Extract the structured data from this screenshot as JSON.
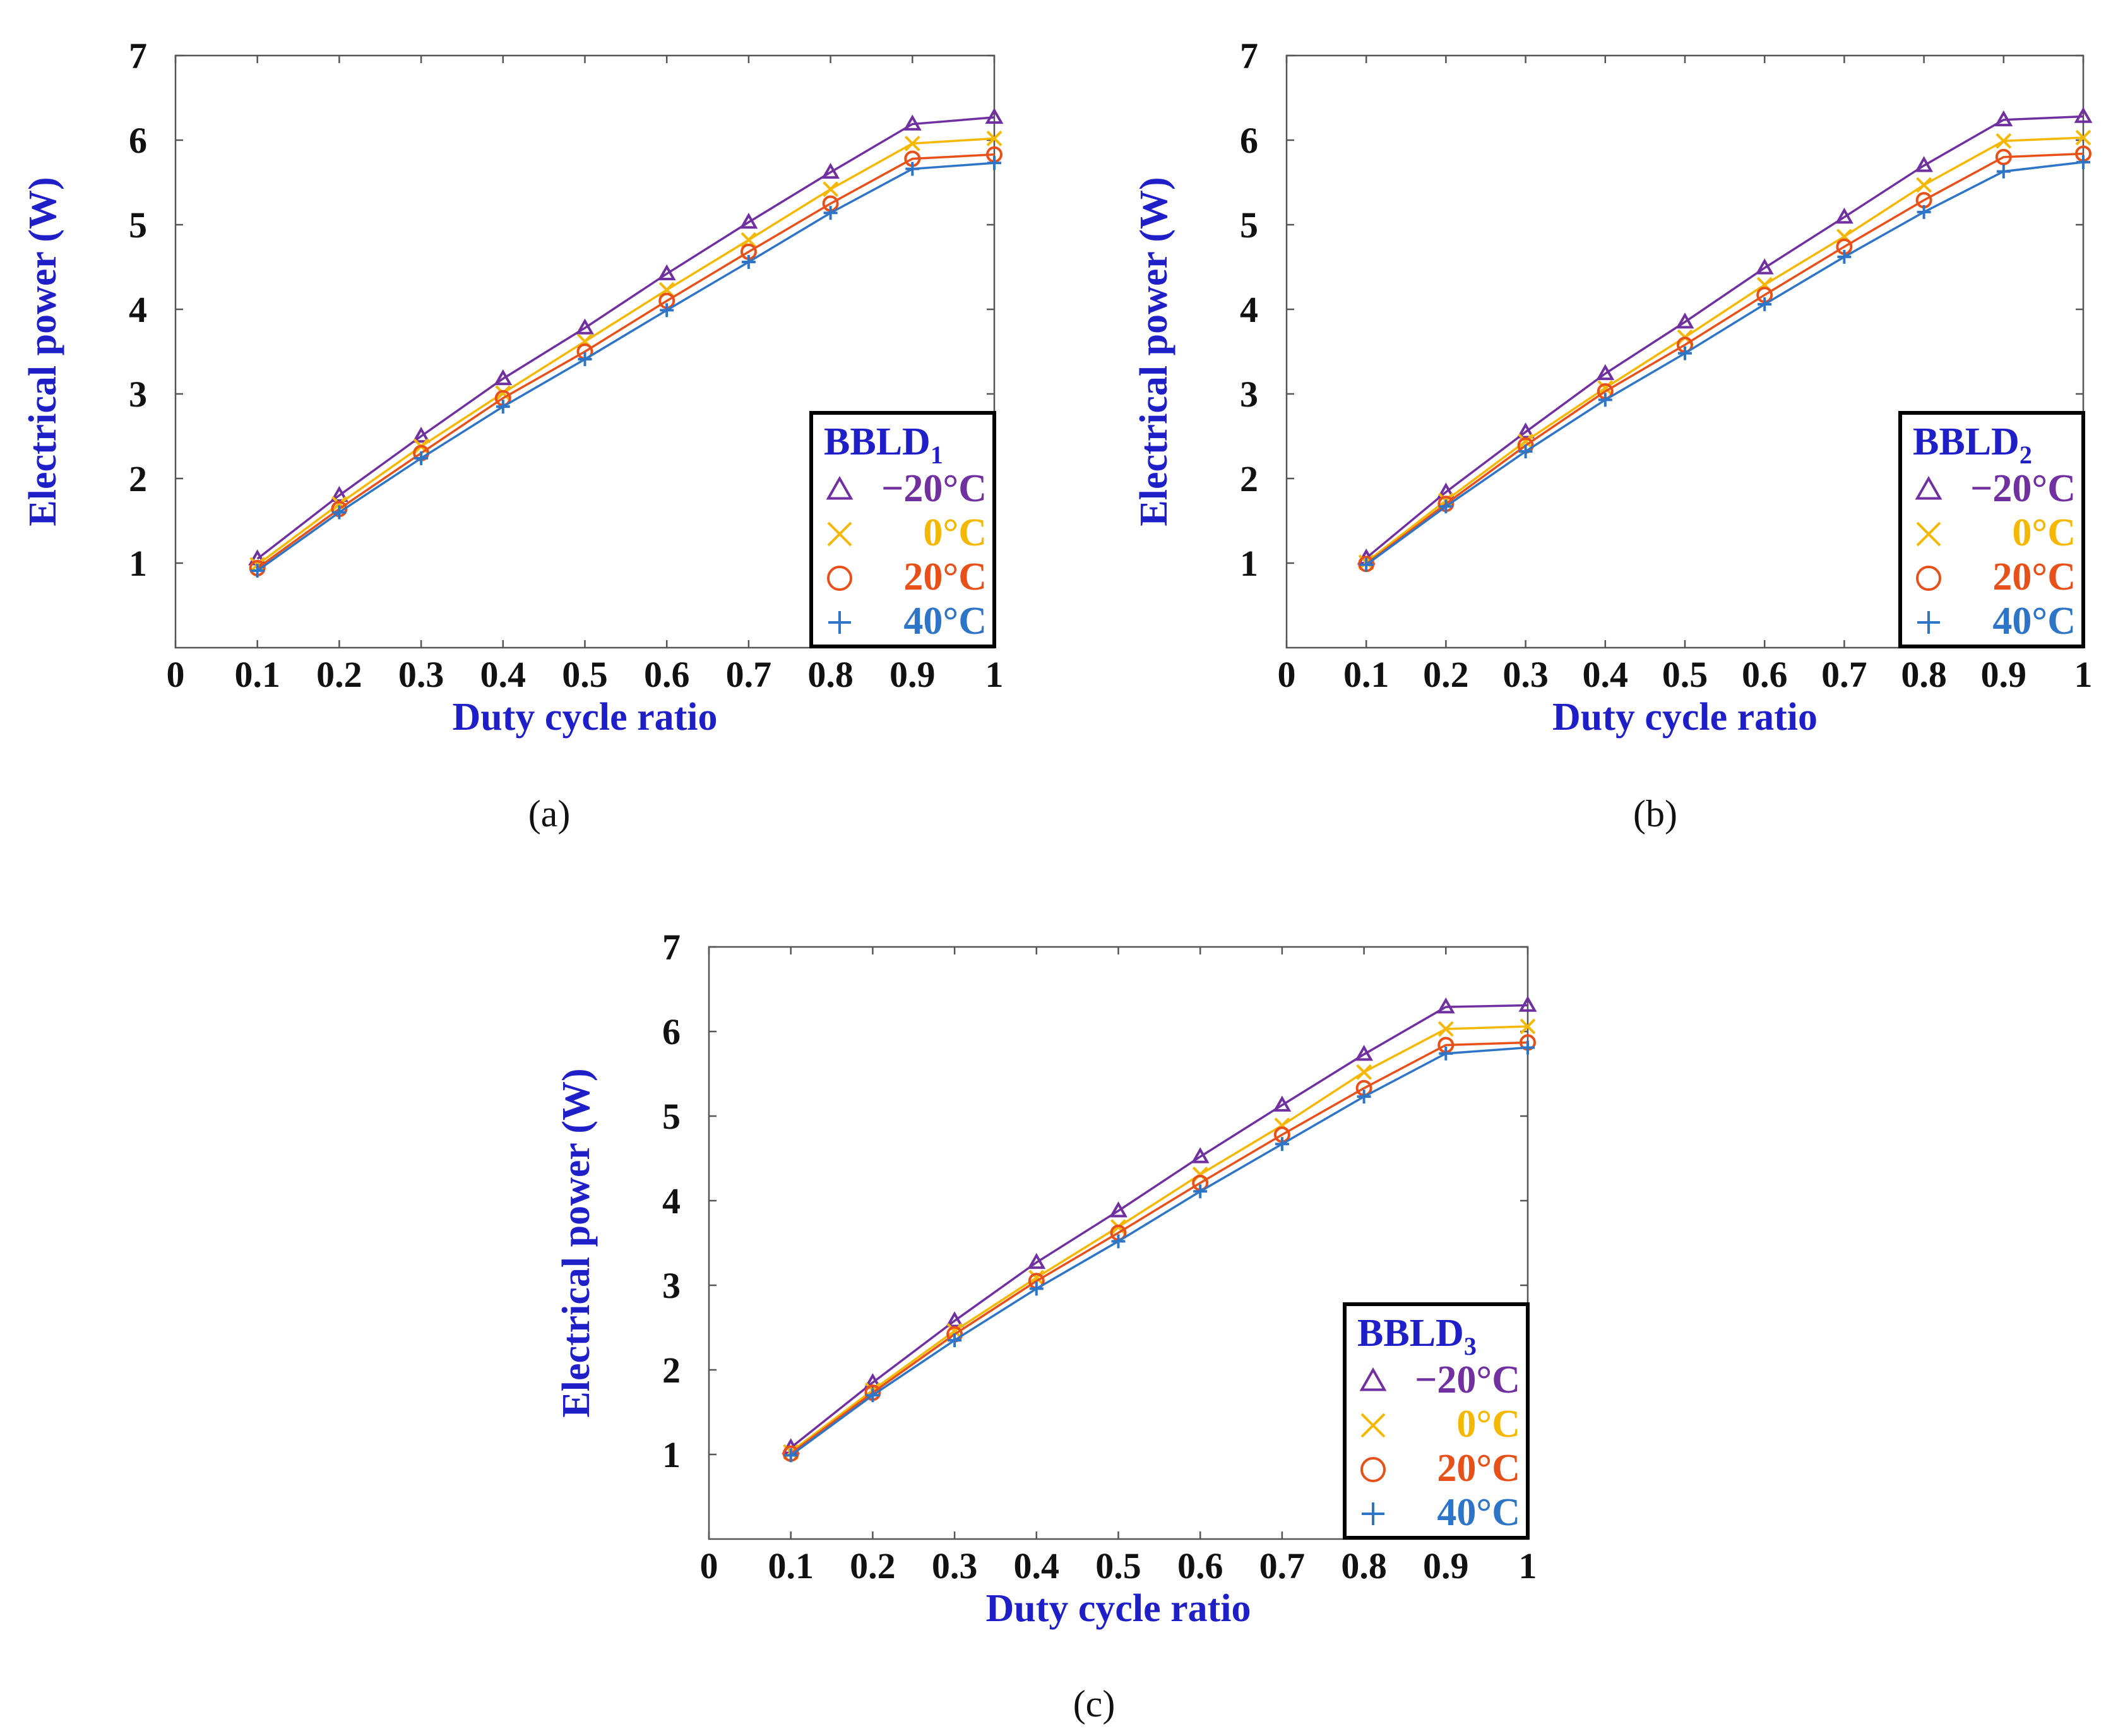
{
  "figure": {
    "panels": [
      {
        "caption": "(a)"
      },
      {
        "caption": "(b)"
      },
      {
        "caption": "(c)"
      }
    ]
  },
  "chart_data": [
    {
      "type": "line",
      "panel": "(a)",
      "xlabel": "Duty cycle ratio",
      "ylabel": "Electrical power (W)",
      "xlim": [
        0,
        1
      ],
      "ylim": [
        0,
        7
      ],
      "x_ticks": [
        0,
        0.1,
        0.2,
        0.3,
        0.4,
        0.5,
        0.6,
        0.7,
        0.8,
        0.9,
        1
      ],
      "x_tick_labels": [
        "0",
        "0.1",
        "0.2",
        "0.3",
        "0.4",
        "0.5",
        "0.6",
        "0.7",
        "0.8",
        "0.9",
        "1"
      ],
      "y_ticks": [
        1,
        2,
        3,
        4,
        5,
        6,
        7
      ],
      "y_tick_labels": [
        "1",
        "2",
        "3",
        "4",
        "5",
        "6",
        "7"
      ],
      "grid": false,
      "legend": {
        "title": "BBLD",
        "subscript": "1",
        "position": "bottom-right"
      },
      "x": [
        0.1,
        0.2,
        0.3,
        0.4,
        0.5,
        0.6,
        0.7,
        0.8,
        0.9,
        1.0
      ],
      "series": [
        {
          "name": "−20°C",
          "marker": "triangle",
          "color": "#7030A0",
          "values": [
            1.05,
            1.8,
            2.5,
            3.18,
            3.78,
            4.42,
            5.03,
            5.62,
            6.19,
            6.27
          ]
        },
        {
          "name": "0°C",
          "marker": "x",
          "color": "#F5B800",
          "values": [
            0.98,
            1.7,
            2.38,
            3.01,
            3.62,
            4.23,
            4.82,
            5.42,
            5.96,
            6.02
          ]
        },
        {
          "name": "20°C",
          "marker": "circle",
          "color": "#E8501A",
          "values": [
            0.94,
            1.64,
            2.3,
            2.95,
            3.5,
            4.1,
            4.68,
            5.25,
            5.78,
            5.83
          ]
        },
        {
          "name": "40°C",
          "marker": "plus",
          "color": "#2E75C8",
          "values": [
            0.91,
            1.6,
            2.24,
            2.85,
            3.41,
            3.99,
            4.56,
            5.14,
            5.66,
            5.73
          ]
        }
      ]
    },
    {
      "type": "line",
      "panel": "(b)",
      "xlabel": "Duty cycle ratio",
      "ylabel": "Electrical power (W)",
      "xlim": [
        0,
        1
      ],
      "ylim": [
        0,
        7
      ],
      "x_ticks": [
        0,
        0.1,
        0.2,
        0.3,
        0.4,
        0.5,
        0.6,
        0.7,
        0.8,
        0.9,
        1
      ],
      "x_tick_labels": [
        "0",
        "0.1",
        "0.2",
        "0.3",
        "0.4",
        "0.5",
        "0.6",
        "0.7",
        "0.8",
        "0.9",
        "1"
      ],
      "y_ticks": [
        1,
        2,
        3,
        4,
        5,
        6,
        7
      ],
      "y_tick_labels": [
        "1",
        "2",
        "3",
        "4",
        "5",
        "6",
        "7"
      ],
      "grid": false,
      "legend": {
        "title": "BBLD",
        "subscript": "2",
        "position": "bottom-right"
      },
      "x": [
        0.1,
        0.2,
        0.3,
        0.4,
        0.5,
        0.6,
        0.7,
        0.8,
        0.9,
        1.0
      ],
      "series": [
        {
          "name": "−20°C",
          "marker": "triangle",
          "color": "#7030A0",
          "values": [
            1.06,
            1.84,
            2.55,
            3.24,
            3.85,
            4.49,
            5.09,
            5.7,
            6.24,
            6.28
          ]
        },
        {
          "name": "0°C",
          "marker": "x",
          "color": "#F5B800",
          "values": [
            1.01,
            1.74,
            2.44,
            3.07,
            3.67,
            4.29,
            4.86,
            5.47,
            5.99,
            6.03
          ]
        },
        {
          "name": "20°C",
          "marker": "circle",
          "color": "#E8501A",
          "values": [
            0.99,
            1.7,
            2.39,
            3.03,
            3.58,
            4.17,
            4.74,
            5.29,
            5.8,
            5.84
          ]
        },
        {
          "name": "40°C",
          "marker": "plus",
          "color": "#2E75C8",
          "values": [
            0.98,
            1.67,
            2.32,
            2.93,
            3.48,
            4.06,
            4.62,
            5.15,
            5.63,
            5.74
          ]
        }
      ]
    },
    {
      "type": "line",
      "panel": "(c)",
      "xlabel": "Duty cycle ratio",
      "ylabel": "Electrical power (W)",
      "xlim": [
        0,
        1
      ],
      "ylim": [
        0,
        7
      ],
      "x_ticks": [
        0,
        0.1,
        0.2,
        0.3,
        0.4,
        0.5,
        0.6,
        0.7,
        0.8,
        0.9,
        1
      ],
      "x_tick_labels": [
        "0",
        "0.1",
        "0.2",
        "0.3",
        "0.4",
        "0.5",
        "0.6",
        "0.7",
        "0.8",
        "0.9",
        "1"
      ],
      "y_ticks": [
        1,
        2,
        3,
        4,
        5,
        6,
        7
      ],
      "y_tick_labels": [
        "1",
        "2",
        "3",
        "4",
        "5",
        "6",
        "7"
      ],
      "grid": false,
      "legend": {
        "title": "BBLD",
        "subscript": "3",
        "position": "bottom-right"
      },
      "x": [
        0.1,
        0.2,
        0.3,
        0.4,
        0.5,
        0.6,
        0.7,
        0.8,
        0.9,
        1.0
      ],
      "series": [
        {
          "name": "−20°C",
          "marker": "triangle",
          "color": "#7030A0",
          "values": [
            1.08,
            1.85,
            2.58,
            3.27,
            3.88,
            4.52,
            5.13,
            5.73,
            6.29,
            6.31
          ]
        },
        {
          "name": "0°C",
          "marker": "x",
          "color": "#F5B800",
          "values": [
            1.03,
            1.76,
            2.46,
            3.09,
            3.69,
            4.31,
            4.89,
            5.52,
            6.03,
            6.06
          ]
        },
        {
          "name": "20°C",
          "marker": "circle",
          "color": "#E8501A",
          "values": [
            1.01,
            1.73,
            2.42,
            3.05,
            3.62,
            4.21,
            4.78,
            5.33,
            5.84,
            5.87
          ]
        },
        {
          "name": "40°C",
          "marker": "plus",
          "color": "#2E75C8",
          "values": [
            0.99,
            1.7,
            2.35,
            2.96,
            3.52,
            4.11,
            4.67,
            5.23,
            5.74,
            5.81
          ]
        }
      ]
    }
  ]
}
